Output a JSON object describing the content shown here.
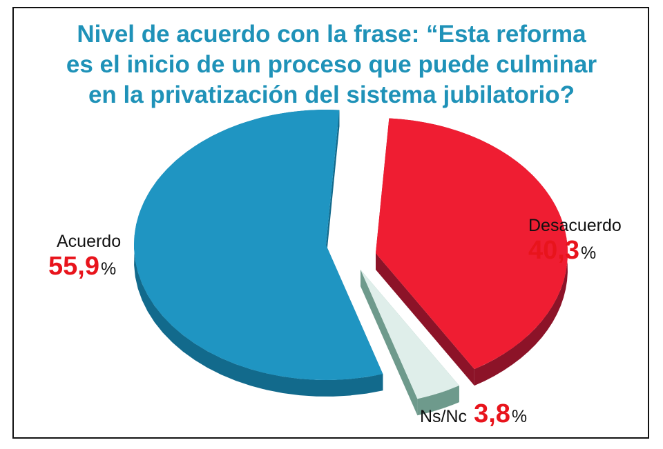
{
  "chart_data": {
    "type": "pie",
    "title": [
      "Nivel de acuerdo con la frase: “Esta reforma",
      "es el inicio de un proceso que puede culminar",
      "en la privatización del sistema jubilatorio?"
    ],
    "slices": [
      {
        "name": "Acuerdo",
        "value": 55.9,
        "display": "55,9",
        "color": "#1f95c2",
        "side": "#126a8c"
      },
      {
        "name": "Desacuerdo",
        "value": 40.3,
        "display": "40,3",
        "color": "#ef1d32",
        "side": "#8c1328"
      },
      {
        "name": "Ns/Nc",
        "value": 3.8,
        "display": "3,8",
        "color": "#dfeeea",
        "side": "#6e9a8c"
      }
    ],
    "percent_sign": "%",
    "title_color": "#1f92b8",
    "value_color": "#e8141c"
  }
}
